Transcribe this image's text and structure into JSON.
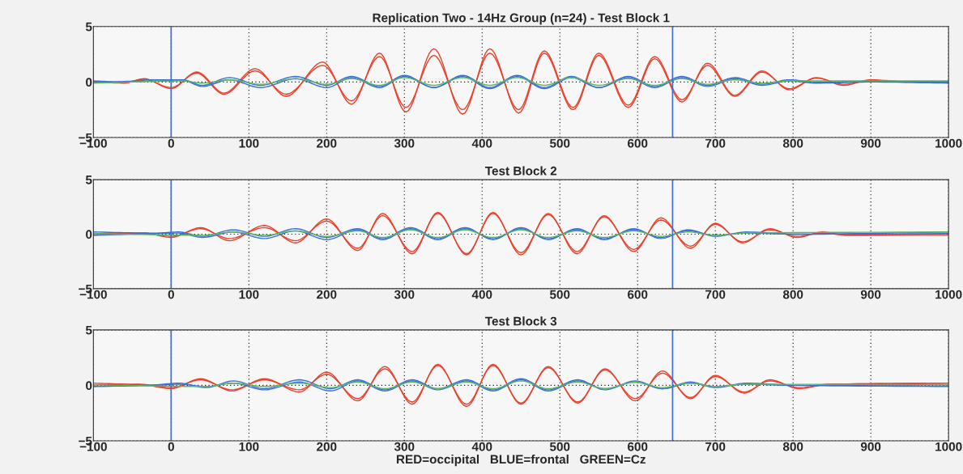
{
  "chart_data": [
    {
      "type": "line",
      "title": "Replication Two - 14Hz Group (n=24) - Test Block 1",
      "xlim": [
        -100,
        1000
      ],
      "xticks": [
        -100,
        0,
        100,
        200,
        300,
        400,
        500,
        600,
        700,
        800,
        900,
        1000
      ],
      "ylim": [
        -5,
        5
      ],
      "yticks": [
        -5,
        0,
        5
      ],
      "grid": true,
      "ref_lines": [
        {
          "axis": "x",
          "value": 0,
          "color": "#3a6fd8"
        },
        {
          "axis": "x",
          "value": 645,
          "color": "#3a6fd8"
        }
      ],
      "series": [
        {
          "color": "#e8412c",
          "x": [
            -100,
            -60,
            -35,
            0,
            33,
            68,
            108,
            148,
            195,
            232,
            268,
            302,
            338,
            375,
            410,
            447,
            480,
            517,
            550,
            588,
            622,
            657,
            690,
            725,
            760,
            795,
            830,
            865,
            900,
            940,
            1000
          ],
          "values": [
            0,
            -0.1,
            0.3,
            -0.6,
            0.9,
            -1.0,
            1.2,
            -1.3,
            1.8,
            -2.0,
            2.6,
            -2.7,
            3.0,
            -2.9,
            3.0,
            -2.8,
            2.6,
            -2.5,
            2.4,
            -2.3,
            2.1,
            -1.8,
            1.7,
            -1.2,
            1.0,
            -0.7,
            0.4,
            -0.3,
            0.2,
            0.05,
            0
          ]
        },
        {
          "color": "#e8412c",
          "x": [
            -100,
            -60,
            -35,
            0,
            33,
            68,
            108,
            148,
            195,
            232,
            268,
            302,
            338,
            375,
            410,
            447,
            480,
            517,
            550,
            588,
            622,
            657,
            690,
            725,
            760,
            795,
            830,
            865,
            900,
            940,
            1000
          ],
          "values": [
            0.05,
            -0.05,
            0.25,
            -0.5,
            0.8,
            -1.1,
            1.0,
            -1.1,
            1.5,
            -1.7,
            2.3,
            -2.3,
            2.4,
            -2.5,
            2.6,
            -2.5,
            2.8,
            -2.3,
            2.6,
            -2.1,
            2.3,
            -1.6,
            1.5,
            -1.3,
            0.9,
            -0.6,
            0.35,
            -0.2,
            0.15,
            0,
            -0.05
          ]
        },
        {
          "color": "#3a6fd8",
          "x": [
            -100,
            -60,
            -20,
            15,
            40,
            75,
            115,
            160,
            200,
            232,
            268,
            300,
            338,
            375,
            410,
            445,
            480,
            515,
            550,
            588,
            622,
            657,
            690,
            725,
            760,
            795,
            830,
            900,
            1000
          ],
          "values": [
            -0.05,
            0.05,
            0.2,
            0.2,
            -0.3,
            0.4,
            -0.3,
            0.5,
            -0.3,
            0.5,
            -0.4,
            0.6,
            -0.5,
            0.6,
            -0.5,
            0.6,
            -0.5,
            0.5,
            -0.5,
            0.5,
            -0.4,
            0.5,
            -0.3,
            0.4,
            -0.2,
            0.2,
            0,
            0.05,
            0.05
          ]
        },
        {
          "color": "#3a6fd8",
          "x": [
            -100,
            -60,
            -20,
            15,
            40,
            75,
            115,
            160,
            200,
            232,
            268,
            300,
            338,
            375,
            410,
            445,
            480,
            515,
            550,
            588,
            622,
            657,
            690,
            725,
            760,
            795,
            830,
            900,
            1000
          ],
          "values": [
            0.1,
            0,
            0.1,
            0.15,
            -0.4,
            0.2,
            -0.5,
            0.3,
            -0.5,
            0.4,
            -0.5,
            0.5,
            -0.5,
            0.5,
            -0.6,
            0.5,
            -0.6,
            0.4,
            -0.5,
            0.4,
            -0.5,
            0.4,
            -0.4,
            0.3,
            -0.3,
            0.1,
            -0.1,
            0,
            -0.1
          ]
        },
        {
          "color": "#5cb85c",
          "x": [
            -100,
            15,
            40,
            75,
            115,
            160,
            200,
            232,
            268,
            300,
            338,
            375,
            410,
            445,
            480,
            515,
            550,
            588,
            622,
            657,
            690,
            725,
            760,
            795,
            1000
          ],
          "values": [
            -0.1,
            0.1,
            -0.1,
            0.2,
            -0.2,
            0.3,
            -0.2,
            0.3,
            -0.3,
            0.4,
            -0.3,
            0.4,
            -0.3,
            0.4,
            -0.3,
            0.4,
            -0.3,
            0.3,
            -0.3,
            0.3,
            -0.2,
            0.2,
            -0.1,
            0.1,
            0.1
          ]
        }
      ]
    },
    {
      "type": "line",
      "title": "Test Block 2",
      "xlim": [
        -100,
        1000
      ],
      "xticks": [
        -100,
        0,
        100,
        200,
        300,
        400,
        500,
        600,
        700,
        800,
        900,
        1000
      ],
      "ylim": [
        -5,
        5
      ],
      "yticks": [
        -5,
        0,
        5
      ],
      "grid": true,
      "ref_lines": [
        {
          "axis": "x",
          "value": 0,
          "color": "#3a6fd8"
        },
        {
          "axis": "x",
          "value": 645,
          "color": "#3a6fd8"
        }
      ],
      "series": [
        {
          "color": "#e8412c",
          "x": [
            -100,
            -35,
            0,
            38,
            75,
            120,
            160,
            200,
            240,
            272,
            310,
            343,
            380,
            414,
            450,
            485,
            522,
            557,
            595,
            630,
            668,
            700,
            735,
            770,
            805,
            838,
            870,
            1000
          ],
          "values": [
            -0.1,
            0.1,
            -0.3,
            0.6,
            -0.6,
            0.8,
            -0.8,
            1.4,
            -1.5,
            1.9,
            -1.8,
            2.0,
            -1.9,
            2.0,
            -1.9,
            1.9,
            -1.8,
            1.7,
            -1.6,
            1.5,
            -1.3,
            1.0,
            -0.8,
            0.5,
            -0.3,
            0.2,
            -0.1,
            -0.1
          ]
        },
        {
          "color": "#e8412c",
          "x": [
            -100,
            -35,
            0,
            38,
            75,
            120,
            160,
            200,
            240,
            272,
            310,
            343,
            380,
            414,
            450,
            485,
            522,
            557,
            595,
            630,
            668,
            700,
            735,
            770,
            805,
            838,
            870,
            1000
          ],
          "values": [
            0.05,
            0.05,
            -0.2,
            0.5,
            -0.4,
            0.6,
            -0.6,
            1.2,
            -1.3,
            1.7,
            -1.6,
            1.9,
            -1.8,
            1.9,
            -1.7,
            1.8,
            -1.6,
            1.6,
            -1.4,
            1.3,
            -1.1,
            0.9,
            -0.7,
            0.4,
            -0.2,
            0.1,
            -0.1,
            0.05
          ]
        },
        {
          "color": "#3a6fd8",
          "x": [
            -100,
            -20,
            10,
            40,
            80,
            120,
            160,
            200,
            240,
            272,
            308,
            343,
            378,
            414,
            450,
            485,
            522,
            557,
            595,
            630,
            665,
            700,
            740,
            800,
            1000
          ],
          "values": [
            0.2,
            0.1,
            0.2,
            -0.2,
            0.4,
            -0.2,
            0.5,
            -0.3,
            0.5,
            -0.4,
            0.6,
            -0.4,
            0.6,
            -0.5,
            0.6,
            -0.5,
            0.5,
            -0.5,
            0.5,
            -0.4,
            0.4,
            -0.2,
            0.2,
            0,
            0.2
          ]
        },
        {
          "color": "#3a6fd8",
          "x": [
            -100,
            -20,
            10,
            40,
            80,
            120,
            160,
            200,
            240,
            272,
            308,
            343,
            378,
            414,
            450,
            485,
            522,
            557,
            595,
            630,
            665,
            700,
            740,
            800,
            1000
          ],
          "values": [
            -0.1,
            0.05,
            0.1,
            -0.3,
            0.2,
            -0.4,
            0.3,
            -0.5,
            0.4,
            -0.5,
            0.5,
            -0.5,
            0.5,
            -0.4,
            0.5,
            -0.4,
            0.4,
            -0.4,
            0.4,
            -0.3,
            0.3,
            -0.1,
            0.1,
            0,
            0.05
          ]
        },
        {
          "color": "#5cb85c",
          "x": [
            -100,
            40,
            80,
            120,
            160,
            200,
            240,
            272,
            308,
            343,
            378,
            414,
            450,
            485,
            522,
            557,
            595,
            630,
            665,
            700,
            740,
            1000
          ],
          "values": [
            0.05,
            -0.1,
            0.2,
            -0.1,
            0.3,
            -0.2,
            0.3,
            -0.3,
            0.4,
            -0.3,
            0.4,
            -0.3,
            0.4,
            -0.3,
            0.3,
            -0.3,
            0.3,
            -0.2,
            0.2,
            -0.1,
            0.1,
            0.2
          ]
        }
      ]
    },
    {
      "type": "line",
      "title": "Test Block 3",
      "xlabel": "RED=occipital   BLUE=frontal   GREEN=Cz",
      "xlim": [
        -100,
        1000
      ],
      "xticks": [
        -100,
        0,
        100,
        200,
        300,
        400,
        500,
        600,
        700,
        800,
        900,
        1000
      ],
      "ylim": [
        -5,
        5
      ],
      "yticks": [
        -5,
        0,
        5
      ],
      "grid": true,
      "ref_lines": [
        {
          "axis": "x",
          "value": 0,
          "color": "#3a6fd8"
        },
        {
          "axis": "x",
          "value": 645,
          "color": "#3a6fd8"
        }
      ],
      "series": [
        {
          "color": "#e8412c",
          "x": [
            -100,
            -40,
            0,
            38,
            78,
            120,
            165,
            200,
            240,
            275,
            310,
            343,
            380,
            414,
            450,
            485,
            523,
            558,
            597,
            632,
            668,
            700,
            737,
            770,
            808,
            845,
            1000
          ],
          "values": [
            0.05,
            0.1,
            -0.3,
            0.6,
            -0.5,
            0.6,
            -0.6,
            1.2,
            -1.4,
            1.7,
            -1.7,
            1.9,
            -1.9,
            1.9,
            -1.7,
            1.7,
            -1.6,
            1.5,
            -1.4,
            1.3,
            -1.2,
            0.9,
            -0.7,
            0.5,
            -0.3,
            0.1,
            0.2
          ]
        },
        {
          "color": "#e8412c",
          "x": [
            -100,
            -40,
            0,
            38,
            78,
            120,
            165,
            200,
            240,
            275,
            310,
            343,
            380,
            414,
            450,
            485,
            523,
            558,
            597,
            632,
            668,
            700,
            737,
            770,
            808,
            845,
            1000
          ],
          "values": [
            0.2,
            0.05,
            -0.2,
            0.5,
            -0.4,
            0.5,
            -0.4,
            1.0,
            -1.2,
            1.5,
            -1.5,
            1.8,
            -1.7,
            1.8,
            -1.6,
            1.6,
            -1.5,
            1.4,
            -1.2,
            1.1,
            -1.1,
            0.8,
            -0.6,
            0.4,
            -0.2,
            0.1,
            0.2
          ]
        },
        {
          "color": "#3a6fd8",
          "x": [
            -100,
            -20,
            10,
            45,
            80,
            120,
            165,
            205,
            240,
            275,
            310,
            343,
            380,
            414,
            450,
            485,
            523,
            558,
            597,
            632,
            668,
            700,
            740,
            800,
            1000
          ],
          "values": [
            -0.1,
            0.05,
            0.2,
            -0.2,
            0.4,
            -0.3,
            0.5,
            -0.3,
            0.5,
            -0.4,
            0.5,
            -0.3,
            0.5,
            -0.4,
            0.6,
            -0.4,
            0.5,
            -0.4,
            0.4,
            -0.3,
            0.3,
            -0.2,
            0.2,
            0,
            -0.1
          ]
        },
        {
          "color": "#3a6fd8",
          "x": [
            -100,
            -20,
            10,
            45,
            80,
            120,
            165,
            205,
            240,
            275,
            310,
            343,
            380,
            414,
            450,
            485,
            523,
            558,
            597,
            632,
            668,
            700,
            740,
            800,
            1000
          ],
          "values": [
            -0.1,
            0,
            0.1,
            -0.1,
            0.2,
            -0.4,
            0.3,
            -0.5,
            0.4,
            -0.5,
            0.4,
            -0.4,
            0.4,
            -0.5,
            0.5,
            -0.5,
            0.4,
            -0.3,
            0.3,
            -0.3,
            0.2,
            -0.1,
            0.1,
            0,
            0.05
          ]
        },
        {
          "color": "#5cb85c",
          "x": [
            -100,
            45,
            80,
            120,
            165,
            205,
            240,
            275,
            310,
            343,
            380,
            414,
            450,
            485,
            523,
            558,
            597,
            632,
            668,
            700,
            740,
            1000
          ],
          "values": [
            0.05,
            -0.1,
            0.2,
            -0.1,
            0.2,
            -0.2,
            0.3,
            -0.3,
            0.3,
            -0.3,
            0.3,
            -0.3,
            0.4,
            -0.3,
            0.3,
            -0.3,
            0.3,
            -0.2,
            0.2,
            -0.1,
            0.1,
            0.05
          ]
        }
      ]
    }
  ]
}
